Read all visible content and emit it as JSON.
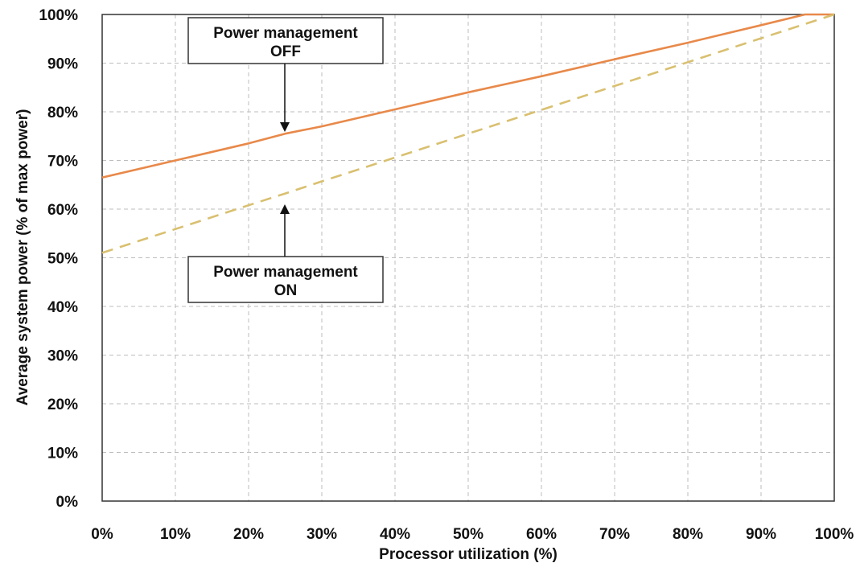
{
  "chart_data": {
    "type": "line",
    "title": "",
    "xlabel": "Processor utilization (%)",
    "ylabel": "Average system power (% of max power)",
    "xlim": [
      0,
      100
    ],
    "ylim": [
      0,
      100
    ],
    "x_ticks": [
      "0%",
      "10%",
      "20%",
      "30%",
      "40%",
      "50%",
      "60%",
      "70%",
      "80%",
      "90%",
      "100%"
    ],
    "y_ticks": [
      "0%",
      "10%",
      "20%",
      "30%",
      "40%",
      "50%",
      "60%",
      "70%",
      "80%",
      "90%",
      "100%"
    ],
    "grid": true,
    "series": [
      {
        "name": "Power management OFF",
        "color": "#e8894a",
        "style": "solid",
        "x": [
          0,
          10,
          20,
          25,
          30,
          40,
          50,
          60,
          70,
          80,
          90,
          96,
          100
        ],
        "y": [
          66.5,
          70.0,
          73.5,
          75.5,
          77.0,
          80.5,
          84.0,
          87.3,
          90.8,
          94.2,
          97.8,
          100,
          100
        ]
      },
      {
        "name": "Power management ON",
        "color": "#d9c070",
        "style": "dashed",
        "x": [
          0,
          10,
          20,
          25,
          30,
          40,
          50,
          60,
          70,
          80,
          90,
          100
        ],
        "y": [
          51,
          55.9,
          60.8,
          63.2,
          65.7,
          70.6,
          75.5,
          80.4,
          85.3,
          90.2,
          95.1,
          100
        ]
      }
    ],
    "annotations": [
      {
        "line1": "Power management",
        "line2": "OFF",
        "target_series": 0,
        "target_x": 25
      },
      {
        "line1": "Power management",
        "line2": "ON",
        "target_series": 1,
        "target_x": 25
      }
    ]
  }
}
